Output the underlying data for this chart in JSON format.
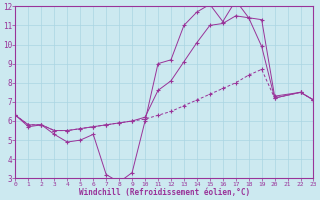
{
  "xlabel": "Windchill (Refroidissement éolien,°C)",
  "xlim": [
    0,
    23
  ],
  "ylim": [
    3,
    12
  ],
  "xticks": [
    0,
    1,
    2,
    3,
    4,
    5,
    6,
    7,
    8,
    9,
    10,
    11,
    12,
    13,
    14,
    15,
    16,
    17,
    18,
    19,
    20,
    21,
    22,
    23
  ],
  "yticks": [
    3,
    4,
    5,
    6,
    7,
    8,
    9,
    10,
    11,
    12
  ],
  "background_color": "#cce9f0",
  "grid_color": "#aad5e2",
  "line_color": "#993399",
  "line1_x": [
    0,
    1,
    2,
    3,
    4,
    5,
    6,
    7,
    8,
    9,
    10,
    11,
    12,
    13,
    14,
    15,
    16,
    17,
    18,
    19,
    20,
    22,
    23
  ],
  "line1_y": [
    6.3,
    5.7,
    5.8,
    5.3,
    4.9,
    5.0,
    5.3,
    3.2,
    2.8,
    3.3,
    6.0,
    9.0,
    9.2,
    11.0,
    11.7,
    12.1,
    11.2,
    12.3,
    11.4,
    9.9,
    7.2,
    7.5,
    7.1
  ],
  "line2_x": [
    0,
    1,
    2,
    3,
    4,
    5,
    6,
    7,
    8,
    9,
    10,
    11,
    12,
    13,
    14,
    15,
    16,
    17,
    18,
    19,
    20,
    22,
    23
  ],
  "line2_y": [
    6.3,
    5.8,
    5.8,
    5.5,
    5.5,
    5.6,
    5.7,
    5.8,
    5.9,
    6.0,
    6.1,
    6.3,
    6.5,
    6.8,
    7.1,
    7.4,
    7.7,
    8.0,
    8.4,
    8.7,
    7.2,
    7.5,
    7.1
  ],
  "line3_x": [
    0,
    1,
    2,
    3,
    4,
    5,
    6,
    7,
    8,
    9,
    10,
    11,
    12,
    13,
    14,
    15,
    16,
    17,
    18,
    19,
    20,
    22,
    23
  ],
  "line3_y": [
    6.3,
    5.8,
    5.8,
    5.5,
    5.5,
    5.6,
    5.7,
    5.8,
    5.9,
    6.0,
    6.2,
    7.6,
    8.1,
    9.1,
    10.1,
    11.0,
    11.1,
    11.5,
    11.4,
    11.3,
    7.3,
    7.5,
    7.1
  ]
}
